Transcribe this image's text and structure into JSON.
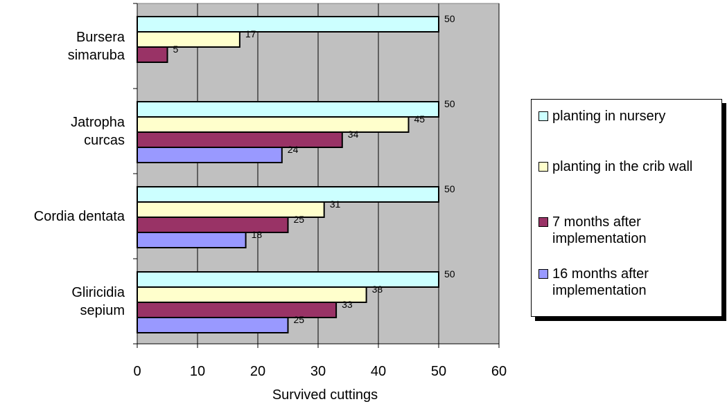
{
  "chart_data": {
    "type": "hbar",
    "xlabel": "Survived cuttings",
    "categories": [
      "Bursera\nsimaruba",
      "Jatropha\ncurcas",
      "Cordia dentata",
      "Gliricidia\nsepium"
    ],
    "series": [
      {
        "name": "planting in nursery",
        "color": "#ccffff",
        "values": [
          50,
          50,
          50,
          50
        ]
      },
      {
        "name": "planting in the crib wall",
        "color": "#ffffcc",
        "values": [
          17,
          45,
          31,
          38
        ]
      },
      {
        "name": "7 months after implementation",
        "color": "#993366",
        "values": [
          5,
          34,
          25,
          33
        ]
      },
      {
        "name": "16 months after implementation",
        "color": "#9999ff",
        "values": [
          null,
          24,
          18,
          25
        ]
      }
    ],
    "xlim": [
      0,
      60
    ],
    "xticks": [
      0,
      10,
      20,
      30,
      40,
      50,
      60
    ],
    "grid": true,
    "legend": "right"
  }
}
